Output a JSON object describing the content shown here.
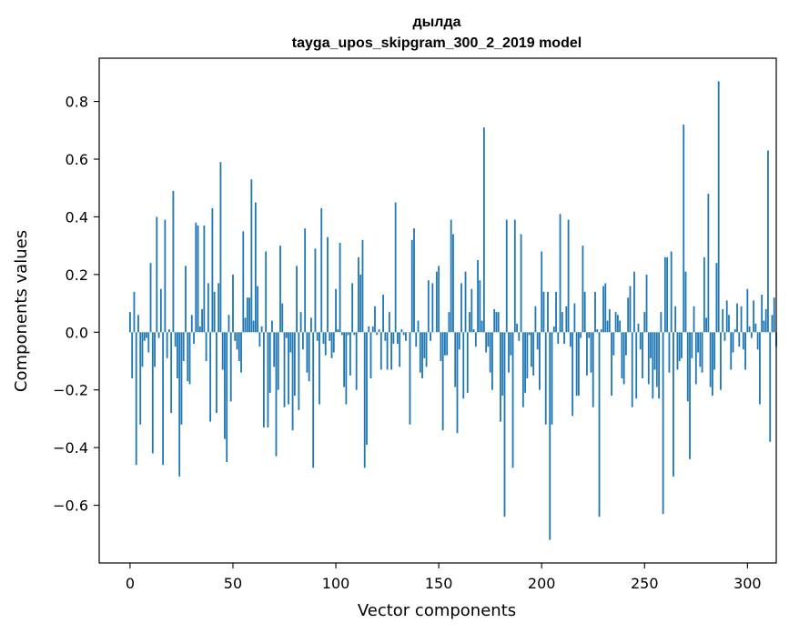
{
  "chart_data": {
    "type": "bar",
    "title": "дылда",
    "subtitle": "tayga_upos_skipgram_300_2_2019 model",
    "xlabel": "Vector components",
    "ylabel": "Components values",
    "xlim": [
      -15,
      314
    ],
    "ylim": [
      -0.8,
      0.95
    ],
    "xticks": [
      0,
      50,
      100,
      150,
      200,
      250,
      300
    ],
    "yticks": [
      -0.6,
      -0.4,
      -0.2,
      0.0,
      0.2,
      0.4,
      0.6,
      0.8
    ],
    "grid": false,
    "legend": "none",
    "bar_color": "#1f77b4",
    "values": [
      0.07,
      -0.16,
      0.14,
      -0.46,
      0.06,
      -0.32,
      -0.12,
      -0.03,
      -0.02,
      -0.07,
      0.24,
      -0.42,
      -0.12,
      0.4,
      -0.02,
      0.15,
      -0.46,
      0.39,
      -0.09,
      0.01,
      -0.28,
      0.49,
      -0.05,
      -0.16,
      -0.5,
      -0.32,
      -0.1,
      0.23,
      -0.17,
      -0.18,
      0.06,
      -0.04,
      0.38,
      0.37,
      0.02,
      0.08,
      0.37,
      -0.1,
      0.17,
      -0.31,
      0.43,
      0.14,
      -0.28,
      0.17,
      0.59,
      -0.13,
      -0.37,
      -0.45,
      0.06,
      -0.24,
      0.2,
      -0.03,
      -0.06,
      -0.1,
      -0.14,
      0.35,
      0.05,
      0.12,
      0.12,
      0.53,
      0.04,
      0.45,
      0.16,
      -0.05,
      0.02,
      -0.33,
      0.28,
      -0.33,
      -0.21,
      0.04,
      -0.12,
      -0.43,
      -0.2,
      0.3,
      0.1,
      -0.26,
      -0.02,
      -0.25,
      -0.07,
      -0.34,
      -0.22,
      0.23,
      -0.27,
      0.07,
      -0.06,
      0.36,
      -0.14,
      -0.17,
      0.05,
      -0.47,
      0.29,
      -0.03,
      -0.25,
      0.43,
      -0.04,
      -0.08,
      0.33,
      -0.03,
      -0.09,
      -0.07,
      0.15,
      0.01,
      0.31,
      -0.01,
      -0.19,
      -0.25,
      -0.01,
      -0.15,
      0.17,
      -0.01,
      -0.2,
      0.26,
      0.2,
      0.32,
      -0.47,
      -0.39,
      0.02,
      -0.16,
      0.02,
      0.09,
      -0.01,
      0.01,
      -0.13,
      0.13,
      -0.03,
      -0.13,
      0.07,
      -0.13,
      -0.04,
      0.45,
      -0.04,
      -0.12,
      0.01,
      -0.01,
      -0.03,
      0.0,
      -0.32,
      0.32,
      0.36,
      -0.05,
      0.04,
      -0.14,
      -0.16,
      -0.09,
      -0.12,
      0.18,
      -0.03,
      0.17,
      0.0,
      0.21,
      0.23,
      -0.1,
      -0.34,
      -0.08,
      -0.08,
      0.07,
      0.39,
      0.34,
      -0.19,
      -0.35,
      -0.06,
      0.17,
      -0.23,
      0.21,
      -0.21,
      0.07,
      0.15,
      0.01,
      -0.05,
      0.25,
      0.18,
      0.04,
      0.71,
      -0.07,
      -0.05,
      -0.14,
      -0.2,
      0.08,
      0.07,
      0.07,
      -0.31,
      -0.22,
      -0.64,
      0.39,
      -0.14,
      -0.08,
      -0.47,
      0.39,
      0.03,
      -0.03,
      0.34,
      -0.26,
      -0.21,
      -0.16,
      -0.01,
      -0.12,
      -0.15,
      0.09,
      -0.06,
      -0.2,
      0.28,
      0.14,
      -0.32,
      0.14,
      -0.72,
      -0.32,
      0.02,
      0.14,
      -0.04,
      0.41,
      0.07,
      -0.04,
      0.09,
      0.39,
      -0.05,
      -0.29,
      0.1,
      -0.22,
      -0.22,
      -0.02,
      0.3,
      0.14,
      -0.15,
      -0.02,
      -0.14,
      -0.26,
      0.14,
      0.01,
      -0.64,
      0.01,
      0.16,
      0.17,
      0.04,
      0.08,
      -0.22,
      -0.08,
      0.07,
      0.06,
      0.04,
      -0.16,
      -0.18,
      -0.08,
      0.12,
      0.16,
      -0.26,
      0.21,
      -0.23,
      0.03,
      -0.06,
      -0.16,
      0.07,
      0.2,
      -0.18,
      -0.09,
      -0.23,
      -0.13,
      -0.19,
      -0.23,
      0.07,
      -0.63,
      0.26,
      0.26,
      -0.14,
      0.28,
      -0.5,
      0.09,
      -0.13,
      -0.1,
      -0.09,
      0.72,
      0.21,
      -0.24,
      -0.44,
      -0.09,
      0.09,
      -0.18,
      -0.07,
      -0.12,
      -0.14,
      0.26,
      0.05,
      0.48,
      -0.19,
      -0.22,
      -0.13,
      0.24,
      0.87,
      -0.2,
      0.08,
      -0.03,
      0.11,
      0.06,
      -0.13,
      -0.07,
      0.01,
      0.1,
      -0.05,
      0.09,
      -0.06,
      -0.13,
      0.15,
      0.02,
      -0.02,
      0.11,
      0.03,
      -0.06,
      -0.25,
      0.13,
      0.04,
      0.08,
      0.63,
      -0.38,
      0.06,
      0.12,
      -0.05
    ]
  }
}
